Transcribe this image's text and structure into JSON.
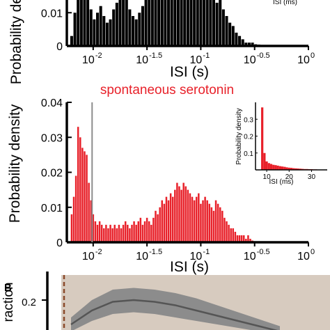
{
  "chart_data": [
    {
      "type": "bar",
      "panel": "top",
      "xlabel": "ISI (s)",
      "ylabel": "Probability density",
      "x_scale": "log10",
      "xlim": [
        -2.4,
        0
      ],
      "ylim_visible": [
        0,
        0.015
      ],
      "color": "#000000",
      "x_ticks": [
        {
          "exp": -2,
          "label": "10",
          "sup": "-2"
        },
        {
          "exp": -1.5,
          "label": "10",
          "sup": "-1.5"
        },
        {
          "exp": -1,
          "label": "10",
          "sup": "-1"
        },
        {
          "exp": -0.5,
          "label": "10",
          "sup": "-0.5"
        },
        {
          "exp": 0,
          "label": "10",
          "sup": "0"
        }
      ],
      "y_ticks": [
        {
          "v": 0,
          "label": "0"
        },
        {
          "v": 0.01,
          "label": "0.01"
        }
      ],
      "inset_axis_fragment": "ISI (ms)",
      "log10_x": [
        -2.2,
        -2.17,
        -2.14,
        -2.11,
        -2.08,
        -2.05,
        -2.02,
        -1.99,
        -1.96,
        -1.93,
        -1.9,
        -1.87,
        -1.84,
        -1.81,
        -1.78,
        -1.75,
        -1.72,
        -1.69,
        -1.66,
        -1.63,
        -1.6,
        -1.57,
        -1.54,
        -1.51,
        -1.48,
        -1.45,
        -1.42,
        -1.39,
        -1.36,
        -1.33,
        -1.3,
        -1.27,
        -1.24,
        -1.21,
        -1.18,
        -1.15,
        -1.12,
        -1.09,
        -1.06,
        -1.03,
        -1.0,
        -0.97,
        -0.94,
        -0.91,
        -0.88,
        -0.85,
        -0.82,
        -0.79,
        -0.76,
        -0.73,
        -0.7,
        -0.67,
        -0.64,
        -0.61,
        -0.58,
        -0.55,
        -0.52,
        -0.49,
        -0.46,
        -0.43,
        -0.4
      ],
      "values": [
        0.003,
        0.01,
        0.015,
        0.018,
        0.02,
        0.016,
        0.011,
        0.008,
        0.01,
        0.012,
        0.009,
        0.007,
        0.008,
        0.011,
        0.013,
        0.016,
        0.018,
        0.014,
        0.011,
        0.009,
        0.008,
        0.01,
        0.012,
        0.014,
        0.016,
        0.018,
        0.02,
        0.019,
        0.017,
        0.016,
        0.015,
        0.016,
        0.017,
        0.018,
        0.019,
        0.02,
        0.018,
        0.019,
        0.017,
        0.018,
        0.016,
        0.018,
        0.017,
        0.016,
        0.015,
        0.013,
        0.014,
        0.011,
        0.009,
        0.007,
        0.006,
        0.004,
        0.003,
        0.002,
        0.001,
        0.001,
        0.001,
        0.0005,
        0.0004,
        0.0003,
        0.0002
      ]
    },
    {
      "type": "bar",
      "panel": "middle",
      "title": "spontaneous serotonin",
      "xlabel": "ISI (s)",
      "ylabel": "Probability density",
      "x_scale": "log10",
      "xlim": [
        -2.4,
        0
      ],
      "ylim": [
        0,
        0.04
      ],
      "color": "#e8212a",
      "x_ticks": [
        {
          "exp": -2,
          "label": "10",
          "sup": "-2"
        },
        {
          "exp": -1.5,
          "label": "10",
          "sup": "-1.5"
        },
        {
          "exp": -1,
          "label": "10",
          "sup": "-1"
        },
        {
          "exp": -0.5,
          "label": "10",
          "sup": "-0.5"
        },
        {
          "exp": 0,
          "label": "10",
          "sup": "0"
        }
      ],
      "y_ticks": [
        {
          "v": 0,
          "label": "0"
        },
        {
          "v": 0.01,
          "label": "0.01"
        },
        {
          "v": 0.02,
          "label": "0.02"
        },
        {
          "v": 0.03,
          "label": "0.03"
        },
        {
          "v": 0.04,
          "label": "0.04"
        }
      ],
      "vertical_line_log10_x": -2.01,
      "log10_x": [
        -2.2,
        -2.18,
        -2.16,
        -2.14,
        -2.12,
        -2.1,
        -2.08,
        -2.06,
        -2.04,
        -2.02,
        -2.0,
        -1.98,
        -1.96,
        -1.94,
        -1.92,
        -1.9,
        -1.88,
        -1.86,
        -1.84,
        -1.82,
        -1.8,
        -1.78,
        -1.76,
        -1.74,
        -1.72,
        -1.7,
        -1.68,
        -1.66,
        -1.64,
        -1.62,
        -1.6,
        -1.58,
        -1.56,
        -1.54,
        -1.52,
        -1.5,
        -1.48,
        -1.46,
        -1.44,
        -1.42,
        -1.4,
        -1.38,
        -1.36,
        -1.34,
        -1.32,
        -1.3,
        -1.28,
        -1.26,
        -1.24,
        -1.22,
        -1.2,
        -1.18,
        -1.16,
        -1.14,
        -1.12,
        -1.1,
        -1.08,
        -1.06,
        -1.04,
        -1.02,
        -1.0,
        -0.98,
        -0.96,
        -0.94,
        -0.92,
        -0.9,
        -0.88,
        -0.86,
        -0.84,
        -0.82,
        -0.8,
        -0.78,
        -0.76,
        -0.74,
        -0.72,
        -0.7,
        -0.68,
        -0.66,
        -0.64,
        -0.62,
        -0.6,
        -0.58,
        -0.56,
        -0.54,
        -0.52,
        -0.5
      ],
      "values": [
        0.008,
        0.013,
        0.019,
        0.033,
        0.03,
        0.027,
        0.026,
        0.025,
        0.017,
        0.012,
        0.008,
        0.006,
        0.005,
        0.006,
        0.005,
        0.004,
        0.005,
        0.004,
        0.005,
        0.004,
        0.005,
        0.004,
        0.005,
        0.004,
        0.005,
        0.006,
        0.005,
        0.004,
        0.005,
        0.006,
        0.005,
        0.006,
        0.007,
        0.005,
        0.006,
        0.007,
        0.006,
        0.005,
        0.007,
        0.009,
        0.008,
        0.01,
        0.012,
        0.011,
        0.013,
        0.012,
        0.014,
        0.013,
        0.015,
        0.017,
        0.016,
        0.015,
        0.017,
        0.016,
        0.015,
        0.014,
        0.013,
        0.012,
        0.013,
        0.014,
        0.011,
        0.012,
        0.013,
        0.012,
        0.011,
        0.01,
        0.009,
        0.012,
        0.011,
        0.01,
        0.009,
        0.007,
        0.006,
        0.005,
        0.004,
        0.004,
        0.003,
        0.002,
        0.002,
        0.002,
        0.002,
        0.001,
        0.002,
        0.001,
        0.0005,
        0.0003
      ]
    },
    {
      "type": "bar",
      "panel": "inset",
      "xlabel": "ISI (ms)",
      "ylabel": "Probability density",
      "xlim": [
        5,
        37
      ],
      "ylim": [
        0,
        0.4
      ],
      "color": "#e8212a",
      "x_ticks": [
        {
          "v": 10,
          "label": "10"
        },
        {
          "v": 20,
          "label": "20"
        },
        {
          "v": 30,
          "label": "30"
        }
      ],
      "y_ticks": [
        {
          "v": 0.1,
          "label": "0.1"
        },
        {
          "v": 0.2,
          "label": "0.2"
        },
        {
          "v": 0.3,
          "label": "0.3"
        }
      ],
      "x": [
        8,
        9,
        10,
        11,
        12,
        13,
        14,
        15,
        16,
        17,
        18,
        19,
        20,
        21,
        22,
        23,
        24,
        25,
        26,
        27,
        28,
        29,
        30,
        31,
        32,
        33,
        34,
        35
      ],
      "values": [
        0.37,
        0.1,
        0.05,
        0.04,
        0.035,
        0.03,
        0.028,
        0.025,
        0.022,
        0.02,
        0.018,
        0.015,
        0.013,
        0.012,
        0.01,
        0.009,
        0.008,
        0.007,
        0.006,
        0.005,
        0.005,
        0.004,
        0.004,
        0.003,
        0.003,
        0.002,
        0.002,
        0.001
      ]
    },
    {
      "type": "area",
      "panel": "B",
      "panel_label": "B",
      "ylabel_fragment": "raction",
      "y_ticks": [
        {
          "v": 0.2,
          "label": "0.2"
        }
      ],
      "mean_color": "#555555",
      "band_color": "#8c8c8c",
      "background_color": "#d7cbbf",
      "marker_color": "#8a4a2a",
      "x": [
        0,
        0.1,
        0.2,
        0.3,
        0.4,
        0.5,
        0.6,
        0.7,
        0.8,
        0.9,
        1.0
      ],
      "mean": [
        0.06,
        0.14,
        0.19,
        0.2,
        0.19,
        0.17,
        0.14,
        0.11,
        0.08,
        0.05,
        0.02
      ],
      "lower": [
        0.02,
        0.08,
        0.12,
        0.13,
        0.12,
        0.1,
        0.08,
        0.06,
        0.04,
        0.02,
        0.0
      ],
      "upper": [
        0.1,
        0.2,
        0.26,
        0.27,
        0.26,
        0.24,
        0.21,
        0.17,
        0.13,
        0.09,
        0.05
      ]
    }
  ]
}
